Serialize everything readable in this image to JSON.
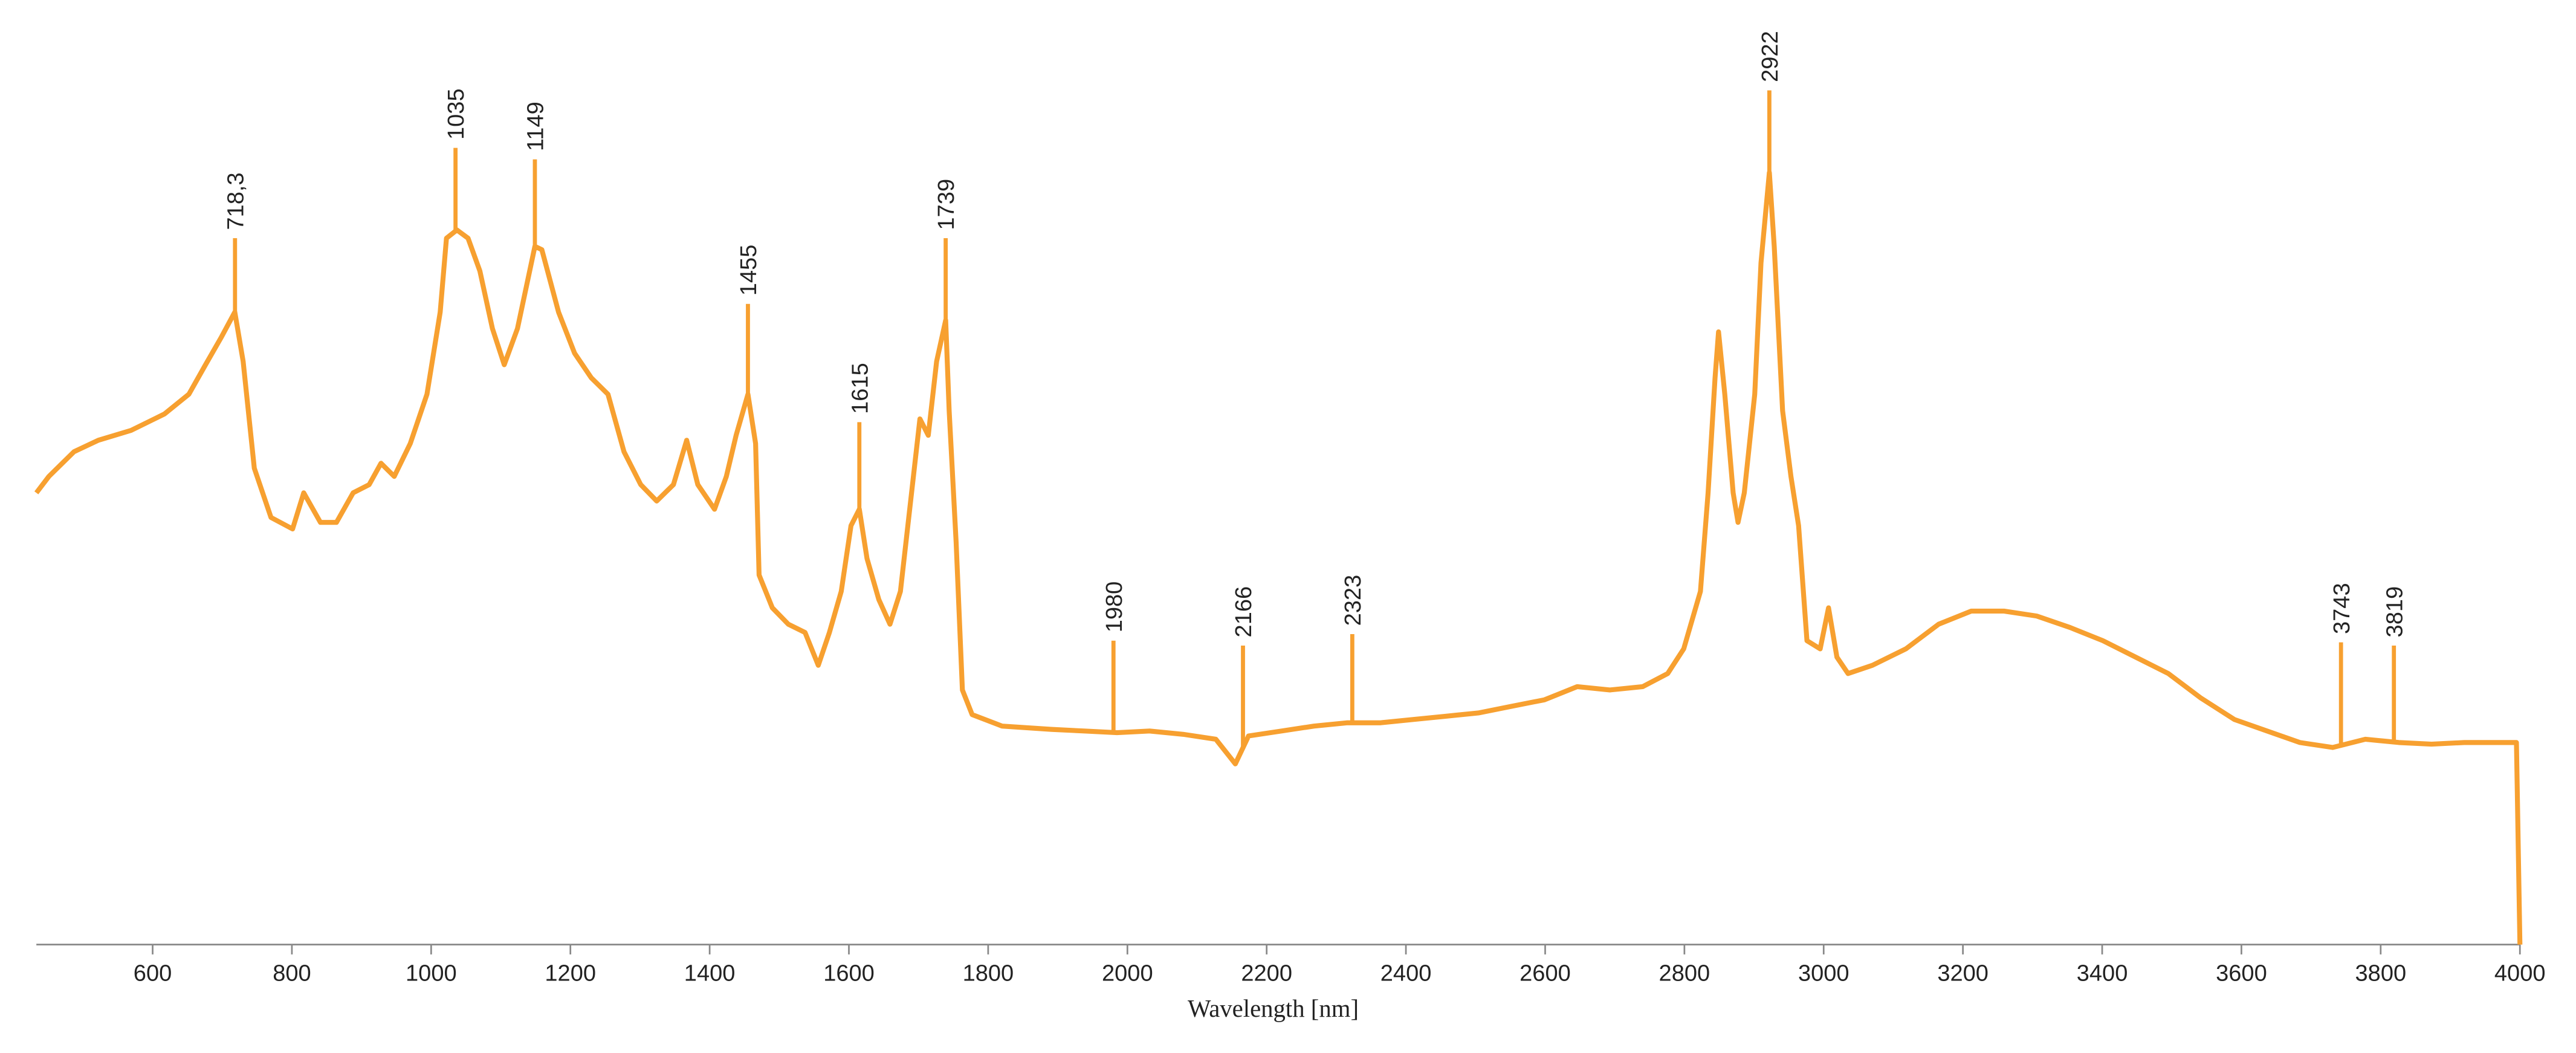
{
  "chart_data": {
    "type": "line",
    "x_label": "Wavelength [nm]",
    "color": "#f7a030",
    "xlim": [
      433,
      4000
    ],
    "xticks": [
      600,
      800,
      1000,
      1200,
      1400,
      1600,
      1800,
      2000,
      2200,
      2400,
      2600,
      2800,
      3000,
      3200,
      3400,
      3600,
      3800,
      4000
    ],
    "ylim": [
      0,
      110
    ],
    "x": [
      433,
      451,
      487,
      522,
      569,
      617,
      652,
      676,
      699,
      718,
      730,
      746,
      770,
      801,
      817,
      841,
      864,
      888,
      911,
      928,
      947,
      970,
      994,
      1013,
      1022,
      1037,
      1053,
      1070,
      1088,
      1105,
      1124,
      1149,
      1159,
      1183,
      1206,
      1230,
      1254,
      1277,
      1301,
      1324,
      1348,
      1367,
      1383,
      1407,
      1424,
      1438,
      1455,
      1466,
      1471,
      1490,
      1513,
      1537,
      1556,
      1572,
      1589,
      1603,
      1615,
      1626,
      1643,
      1659,
      1674,
      1690,
      1702,
      1714,
      1726,
      1739,
      1744,
      1754,
      1763,
      1777,
      1820,
      1891,
      1938,
      1985,
      2032,
      2080,
      2127,
      2155,
      2174,
      2221,
      2268,
      2315,
      2363,
      2410,
      2457,
      2504,
      2551,
      2599,
      2646,
      2693,
      2740,
      2776,
      2799,
      2823,
      2834,
      2844,
      2849,
      2858,
      2870,
      2877,
      2886,
      2901,
      2910,
      2922,
      2929,
      2941,
      2953,
      2964,
      2976,
      2995,
      3007,
      3019,
      3035,
      3070,
      3118,
      3165,
      3212,
      3259,
      3306,
      3354,
      3401,
      3448,
      3495,
      3542,
      3590,
      3637,
      3684,
      3731,
      3778,
      3826,
      3873,
      3920,
      3967,
      3995,
      4000
    ],
    "values": [
      55,
      57,
      60,
      61.4,
      62.6,
      64.6,
      67,
      70.6,
      74,
      77,
      71,
      58,
      52,
      50.6,
      55,
      51.4,
      51.4,
      55,
      56,
      58.6,
      57,
      61,
      67,
      77,
      86,
      87,
      86,
      82,
      75,
      70.6,
      75,
      85,
      84.6,
      77,
      72,
      69,
      67,
      60,
      56,
      54,
      56,
      61.4,
      56,
      53,
      57,
      62,
      67,
      61,
      45,
      41,
      39,
      38,
      34,
      38,
      43,
      51,
      53,
      47,
      42,
      39,
      43,
      55,
      64,
      62,
      71,
      76,
      65,
      49,
      31,
      28,
      26.6,
      26.2,
      26,
      25.8,
      26,
      25.6,
      25,
      22,
      25.4,
      26,
      26.6,
      27,
      27,
      27.4,
      27.8,
      28.2,
      29,
      29.8,
      31.4,
      31,
      31.4,
      33,
      36,
      43,
      55,
      69,
      74.6,
      67,
      55,
      51.4,
      55,
      67,
      83,
      94,
      85,
      65,
      57,
      51,
      37,
      36,
      41,
      35,
      33,
      34,
      36,
      39,
      40.6,
      40.6,
      40,
      38.6,
      37,
      35,
      33,
      30,
      27.4,
      26,
      24.6,
      24,
      25,
      24.6,
      24.4,
      24.6,
      24.6,
      24.6,
      0
    ],
    "annotations": [
      {
        "x": 718.3,
        "label": "718,3",
        "y": 86
      },
      {
        "x": 1035,
        "label": "1035",
        "y": 97
      },
      {
        "x": 1149,
        "label": "1149",
        "y": 95.6
      },
      {
        "x": 1455,
        "label": "1455",
        "y": 78
      },
      {
        "x": 1615,
        "label": "1615",
        "y": 63.6
      },
      {
        "x": 1739,
        "label": "1739",
        "y": 86
      },
      {
        "x": 1980,
        "label": "1980",
        "y": 37
      },
      {
        "x": 2166,
        "label": "2166",
        "y": 36.4
      },
      {
        "x": 2323,
        "label": "2323",
        "y": 37.8
      },
      {
        "x": 2922,
        "label": "2922",
        "y": 104
      },
      {
        "x": 3743,
        "label": "3743",
        "y": 36.8
      },
      {
        "x": 3819,
        "label": "3819",
        "y": 36.4
      }
    ]
  }
}
